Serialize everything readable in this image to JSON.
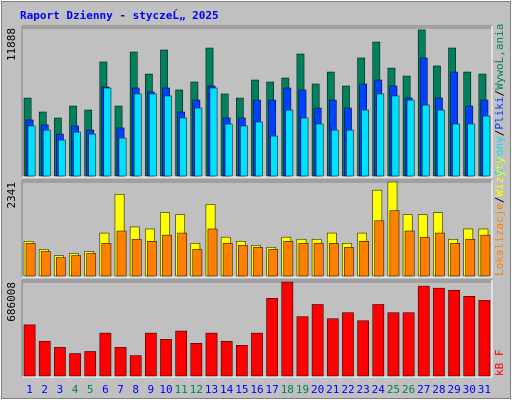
{
  "chart_data": [
    {
      "type": "bar",
      "title": "Raport Dzienny -  styczeĹ„  2025",
      "legend_separator": "/",
      "ylim": [
        0,
        11888
      ],
      "yticks": [
        11888
      ],
      "series": [
        {
          "name": "WywoĹ‚ania",
          "color": "#00805c",
          "values": [
            6260,
            5140,
            4660,
            5620,
            5300,
            9160,
            5620,
            9960,
            8190,
            10120,
            6910,
            7550,
            10280,
            6590,
            6260,
            7710,
            7550,
            7870,
            9800,
            7390,
            8350,
            7230,
            9480,
            10760,
            8670,
            8030,
            11730,
            8840,
            10280,
            8350,
            8190
          ]
        },
        {
          "name": "Pliki",
          "color": "#0040ff",
          "values": [
            4500,
            4100,
            3370,
            4020,
            3690,
            7150,
            3860,
            7070,
            6750,
            7070,
            5140,
            6100,
            7230,
            4660,
            4660,
            6100,
            6100,
            7070,
            6910,
            5460,
            6100,
            5460,
            7390,
            7710,
            7230,
            6270,
            9480,
            6270,
            8350,
            5620,
            6100
          ]
        },
        {
          "name": "Strony",
          "color": "#00e0ff",
          "values": [
            4020,
            3690,
            2890,
            3530,
            3370,
            7070,
            3050,
            6590,
            6590,
            6430,
            4660,
            5460,
            7070,
            4180,
            4020,
            4340,
            3210,
            5300,
            4660,
            4180,
            3690,
            3690,
            5300,
            6590,
            6430,
            6100,
            5700,
            5300,
            4180,
            4180,
            4820
          ]
        }
      ]
    },
    {
      "type": "bar",
      "legend_separator": "/",
      "ylim": [
        0,
        2341
      ],
      "yticks": [
        2341
      ],
      "series": [
        {
          "name": "Wizyty",
          "color": "#ffff00",
          "values": [
            865,
            662,
            509,
            560,
            611,
            1069,
            2036,
            1222,
            1171,
            1578,
            1527,
            814,
            1782,
            967,
            865,
            764,
            713,
            967,
            916,
            916,
            1069,
            814,
            1069,
            2138,
            2341,
            1527,
            1527,
            1578,
            916,
            1171,
            1171
          ]
        },
        {
          "name": "Lokalizacje",
          "color": "#ff8000",
          "values": [
            814,
            611,
            458,
            509,
            560,
            814,
            1120,
            916,
            865,
            1018,
            1069,
            662,
            1171,
            814,
            764,
            713,
            662,
            865,
            814,
            814,
            814,
            713,
            865,
            1374,
            1629,
            1120,
            967,
            1069,
            814,
            916,
            1018
          ]
        }
      ]
    },
    {
      "type": "bar",
      "ylim": [
        0,
        686008
      ],
      "yticks": [
        686008
      ],
      "categories": [
        "1",
        "2",
        "3",
        "4",
        "5",
        "6",
        "7",
        "8",
        "9",
        "10",
        "11",
        "12",
        "13",
        "14",
        "15",
        "16",
        "17",
        "18",
        "19",
        "20",
        "21",
        "22",
        "23",
        "24",
        "25",
        "26",
        "27",
        "28",
        "29",
        "30",
        "31"
      ],
      "category_colors": [
        "#0000ff",
        "#0000ff",
        "#0000ff",
        "#00805c",
        "#00805c",
        "#0000ff",
        "#0000ff",
        "#0000ff",
        "#0000ff",
        "#0000ff",
        "#00805c",
        "#00805c",
        "#0000ff",
        "#0000ff",
        "#0000ff",
        "#0000ff",
        "#0000ff",
        "#00805c",
        "#00805c",
        "#0000ff",
        "#0000ff",
        "#0000ff",
        "#0000ff",
        "#0000ff",
        "#00805c",
        "#00805c",
        "#0000ff",
        "#0000ff",
        "#0000ff",
        "#0000ff",
        "#0000ff"
      ],
      "series": [
        {
          "name": "kB F",
          "color": "#ff0000",
          "values": [
            373000,
            254000,
            209000,
            164000,
            179000,
            313000,
            209000,
            149000,
            313000,
            268000,
            328000,
            239000,
            313000,
            254000,
            224000,
            313000,
            567000,
            686000,
            433000,
            522000,
            418000,
            462000,
            403000,
            522000,
            462000,
            462000,
            656000,
            641000,
            626000,
            582000,
            552000
          ]
        }
      ]
    }
  ]
}
